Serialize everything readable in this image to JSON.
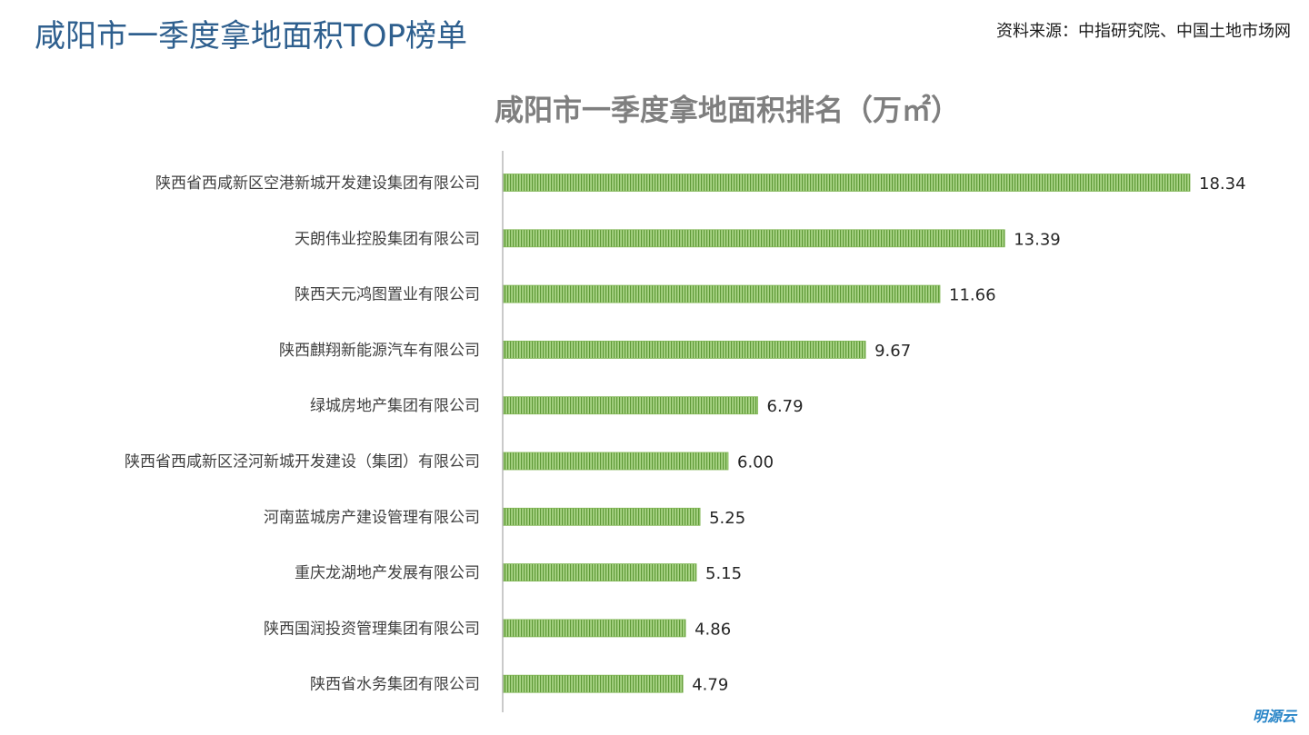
{
  "page": {
    "title": "咸阳市一季度拿地面积TOP榜单",
    "source": "资料来源：中指研究院、中国土地市场网",
    "brand": "明源云"
  },
  "colors": {
    "title": "#2e5f8e",
    "bar_fill": "#92c765",
    "bar_stripe": "#5f9a38",
    "axis": "#a6a6a6",
    "brand": "#2a86c8"
  },
  "chart_data": {
    "type": "bar",
    "orientation": "horizontal",
    "title": "咸阳市一季度拿地面积排名（万㎡）",
    "categories": [
      "陕西省西咸新区空港新城开发建设集团有限公司",
      "天朗伟业控股集团有限公司",
      "陕西天元鸿图置业有限公司",
      "陕西麒翔新能源汽车有限公司",
      "绿城房地产集团有限公司",
      "陕西省西咸新区泾河新城开发建设（集团）有限公司",
      "河南蓝城房产建设管理有限公司",
      "重庆龙湖地产发展有限公司",
      "陕西国润投资管理集团有限公司",
      "陕西省水务集团有限公司"
    ],
    "values": [
      18.34,
      13.39,
      11.66,
      9.67,
      6.79,
      6.0,
      5.25,
      5.15,
      4.86,
      4.79
    ],
    "value_labels": [
      "18.34",
      "13.39",
      "11.66",
      "9.67",
      "6.79",
      "6.00",
      "5.25",
      "5.15",
      "4.86",
      "4.79"
    ],
    "xlim": [
      0,
      18.34
    ],
    "grid": false,
    "legend": "none",
    "data_labels": "outside-end"
  }
}
